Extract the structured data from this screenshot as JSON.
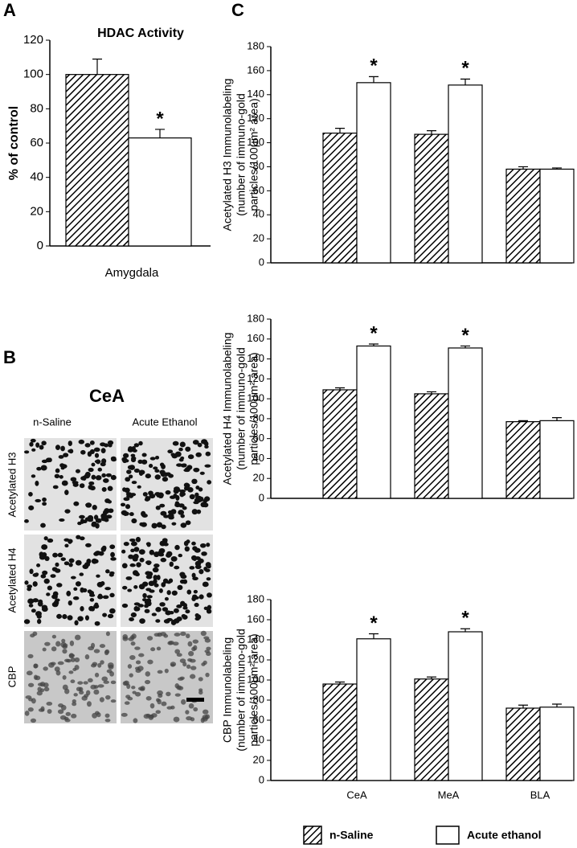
{
  "panel_labels": [
    "A",
    "B",
    "C"
  ],
  "micrograph": {
    "title": "CeA",
    "columns": [
      "n-Saline",
      "Acute Ethanol"
    ],
    "rows": [
      "Acetylated H3",
      "Acetylated H4",
      "CBP"
    ]
  },
  "chart_data": [
    {
      "type": "bar",
      "title": "HDAC Activity",
      "ylabel": [
        "% of control"
      ],
      "xlabel": "Amygdala",
      "categories": [
        null
      ],
      "ylim": [
        0,
        120
      ],
      "yticks": [
        0,
        20,
        40,
        60,
        80,
        100,
        120
      ],
      "series": [
        {
          "color": "#000000",
          "pattern": "hatch",
          "values": [
            100
          ],
          "errors": [
            9
          ]
        },
        {
          "color": "#ffffff",
          "pattern": "solid",
          "values": [
            63
          ],
          "errors": [
            5
          ],
          "significance": [
            "*"
          ]
        }
      ]
    },
    {
      "type": "bar",
      "ylabel": [
        "Acetylated H3  Immunolabeling",
        "(number of immuno-gold",
        "particles/100µm² area)"
      ],
      "ylim": [
        0,
        180
      ],
      "yticks": [
        0,
        20,
        40,
        60,
        80,
        100,
        120,
        140,
        160,
        180
      ],
      "series": [
        {
          "color": "#000000",
          "pattern": "hatch",
          "values": [
            108,
            107,
            78
          ],
          "errors": [
            4,
            3,
            2
          ]
        },
        {
          "color": "#ffffff",
          "pattern": "solid",
          "values": [
            150,
            148,
            78
          ],
          "errors": [
            5,
            5,
            1
          ],
          "significance": [
            "*",
            "*",
            null
          ]
        }
      ]
    },
    {
      "type": "bar",
      "ylabel": [
        "Acetylated H4  Immunolabeling",
        "(number of immuno-gold",
        "particles/100µm² area)"
      ],
      "ylim": [
        0,
        180
      ],
      "yticks": [
        0,
        20,
        40,
        60,
        80,
        100,
        120,
        140,
        160,
        180
      ],
      "series": [
        {
          "color": "#000000",
          "pattern": "hatch",
          "values": [
            109,
            105,
            77
          ],
          "errors": [
            2,
            2,
            1
          ]
        },
        {
          "color": "#ffffff",
          "pattern": "solid",
          "values": [
            153,
            151,
            78
          ],
          "errors": [
            2,
            2,
            3
          ],
          "significance": [
            "*",
            "*",
            null
          ]
        }
      ]
    },
    {
      "type": "bar",
      "ylabel": [
        "CBP  Immunolabeling",
        "(number of immuno-gold",
        "particles/100µm² area)"
      ],
      "categories": [
        "CeA",
        "MeA",
        "BLA"
      ],
      "ylim": [
        0,
        180
      ],
      "yticks": [
        0,
        20,
        40,
        60,
        80,
        100,
        120,
        140,
        160,
        180
      ],
      "series": [
        {
          "name": "n-Saline",
          "color": "#000000",
          "pattern": "hatch",
          "values": [
            96,
            101,
            72
          ],
          "errors": [
            2,
            2,
            3
          ]
        },
        {
          "name": "Acute ethanol",
          "color": "#ffffff",
          "pattern": "solid",
          "values": [
            141,
            148,
            73
          ],
          "errors": [
            5,
            3,
            3
          ],
          "significance": [
            "*",
            "*",
            null
          ]
        }
      ]
    }
  ]
}
